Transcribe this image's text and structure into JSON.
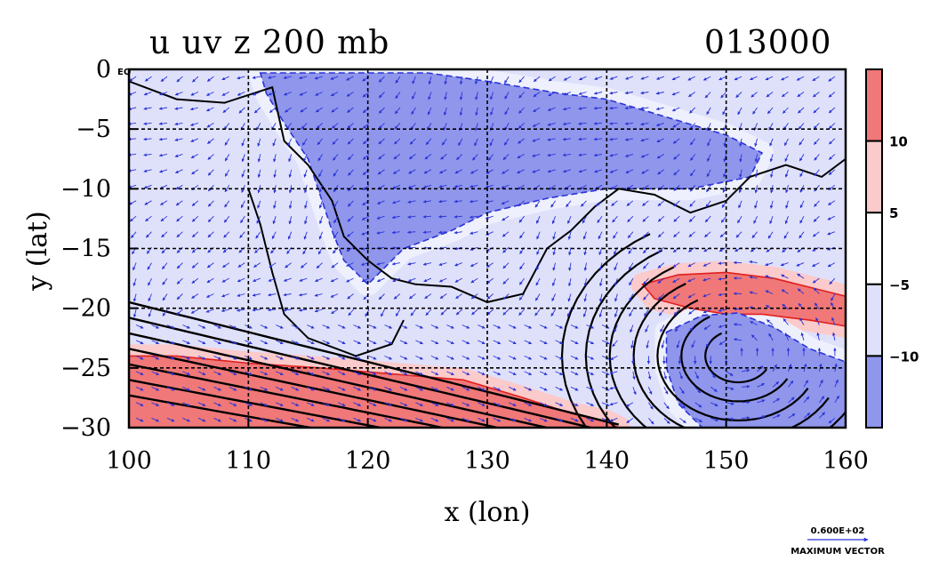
{
  "chart_data": {
    "type": "contour-map",
    "title": "u uv z 200 mb",
    "time_label": "013000",
    "xlabel": "x (lon)",
    "ylabel": "y (lat)",
    "xlim": [
      100,
      160
    ],
    "ylim": [
      -30,
      0
    ],
    "x_ticks": [
      100,
      110,
      120,
      130,
      140,
      150,
      160
    ],
    "y_ticks": [
      0,
      -5,
      -10,
      -15,
      -20,
      -25,
      -30
    ],
    "y_tick_labels": [
      "0",
      "−5",
      "−10",
      "−15",
      "−20",
      "−25",
      "−30"
    ],
    "eq_marker": "EQ",
    "grid": "dashed",
    "colorbar": {
      "ticks": [
        "10",
        "5",
        "−5",
        "−10"
      ],
      "levels": [
        10,
        5,
        -5,
        -10
      ],
      "colors": [
        "#f07878",
        "#fbcaca",
        "#ffffff",
        "#dfe1fb",
        "#8f96ec"
      ]
    },
    "shaded_regions": [
      {
        "name": "easterly-core",
        "level": -10,
        "color": "#8f96ec",
        "polygon": [
          [
            111,
            -0.3
          ],
          [
            125,
            -0.3
          ],
          [
            130,
            -1
          ],
          [
            136,
            -2
          ],
          [
            140,
            -2.5
          ],
          [
            145,
            -4
          ],
          [
            150,
            -5.5
          ],
          [
            153,
            -7
          ],
          [
            152,
            -9
          ],
          [
            147,
            -10
          ],
          [
            140,
            -10
          ],
          [
            135,
            -10.8
          ],
          [
            130,
            -12
          ],
          [
            127,
            -13.5
          ],
          [
            123,
            -15
          ],
          [
            121,
            -17
          ],
          [
            120,
            -18
          ],
          [
            118,
            -16
          ],
          [
            117,
            -13.5
          ],
          [
            116,
            -10.5
          ],
          [
            115,
            -7.5
          ],
          [
            113,
            -4.5
          ],
          [
            111.5,
            -2
          ]
        ]
      },
      {
        "name": "subtropical-jet-west",
        "level": 10,
        "color": "#f07878",
        "polygon": [
          [
            100,
            -24
          ],
          [
            104,
            -24
          ],
          [
            110,
            -24.6
          ],
          [
            116,
            -25
          ],
          [
            122,
            -25.5
          ],
          [
            128,
            -26
          ],
          [
            133,
            -27.5
          ],
          [
            137,
            -28.8
          ],
          [
            140,
            -29.5
          ],
          [
            141,
            -30
          ],
          [
            100,
            -30
          ]
        ]
      },
      {
        "name": "subtropical-jet-east",
        "level": 10,
        "color": "#f07878",
        "polygon": [
          [
            143,
            -18
          ],
          [
            146,
            -17.2
          ],
          [
            150,
            -17
          ],
          [
            154,
            -17.5
          ],
          [
            158,
            -18.5
          ],
          [
            160,
            -19
          ],
          [
            160,
            -21.5
          ],
          [
            157,
            -21
          ],
          [
            153,
            -20.5
          ],
          [
            150,
            -20.5
          ],
          [
            147,
            -20
          ],
          [
            144,
            -19.2
          ]
        ]
      },
      {
        "name": "trough-core",
        "level": -10,
        "color": "#8f96ec",
        "polygon": [
          [
            145,
            -22
          ],
          [
            148,
            -20.6
          ],
          [
            151,
            -20.4
          ],
          [
            154,
            -21.6
          ],
          [
            157,
            -23.4
          ],
          [
            160,
            -24.5
          ],
          [
            160,
            -30
          ],
          [
            148,
            -30
          ],
          [
            146,
            -28
          ],
          [
            145,
            -25
          ]
        ]
      }
    ],
    "vector_scale_label": "0.600E+02",
    "vector_scale_caption": "MAXIMUM VECTOR"
  }
}
